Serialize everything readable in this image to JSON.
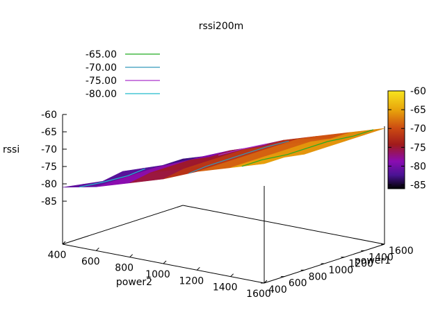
{
  "chart_data": {
    "type": "surface3d",
    "title": "rssi200m",
    "xlabel": "power2",
    "ylabel": "power1",
    "zlabel": "rssi",
    "x_ticks": [
      "400",
      "600",
      "800",
      "1000",
      "1200",
      "1400",
      "1600"
    ],
    "y_ticks": [
      "400",
      "600",
      "800",
      "1000",
      "1200",
      "1400",
      "1600"
    ],
    "z_ticks": [
      "-60",
      "-65",
      "-70",
      "-75",
      "-80",
      "-85"
    ],
    "xlim": [
      400,
      1600
    ],
    "ylim": [
      400,
      1600
    ],
    "zlim": [
      -90,
      -60
    ],
    "grid": false,
    "legend_position": "top-left",
    "contour_legend": [
      {
        "label": "-65.00",
        "color": "#22aa22"
      },
      {
        "label": "-70.00",
        "color": "#3399bb"
      },
      {
        "label": "-75.00",
        "color": "#aa33cc"
      },
      {
        "label": "-80.00",
        "color": "#22bbcc"
      }
    ],
    "colorbar": {
      "ticks": [
        "-60",
        "-65",
        "-70",
        "-75",
        "-80",
        "-85"
      ],
      "range": [
        -86,
        -60
      ],
      "stops": [
        "#f7e51e",
        "#e8a20b",
        "#cc4b12",
        "#a01a1c",
        "#8a0cb2",
        "#4a1394",
        "#000000"
      ]
    },
    "x_values": [
      400,
      600,
      800,
      1000,
      1200,
      1400,
      1600
    ],
    "y_values": [
      400,
      600,
      800,
      1000,
      1200,
      1400,
      1600
    ],
    "z_values": [
      [
        -81,
        -79,
        -76,
        -73,
        -69,
        -66,
        -63
      ],
      [
        -82,
        -79,
        -75,
        -72,
        -69,
        -66,
        -63
      ],
      [
        -83,
        -79,
        -75,
        -72,
        -69,
        -66,
        -64
      ],
      [
        -82,
        -79,
        -75,
        -72,
        -69,
        -66,
        -64
      ],
      [
        -83,
        -80,
        -76,
        -72,
        -69,
        -66,
        -64
      ],
      [
        -84,
        -80,
        -76,
        -73,
        -69,
        -67,
        -64
      ],
      [
        -84,
        -81,
        -77,
        -73,
        -70,
        -67,
        -64
      ]
    ]
  }
}
